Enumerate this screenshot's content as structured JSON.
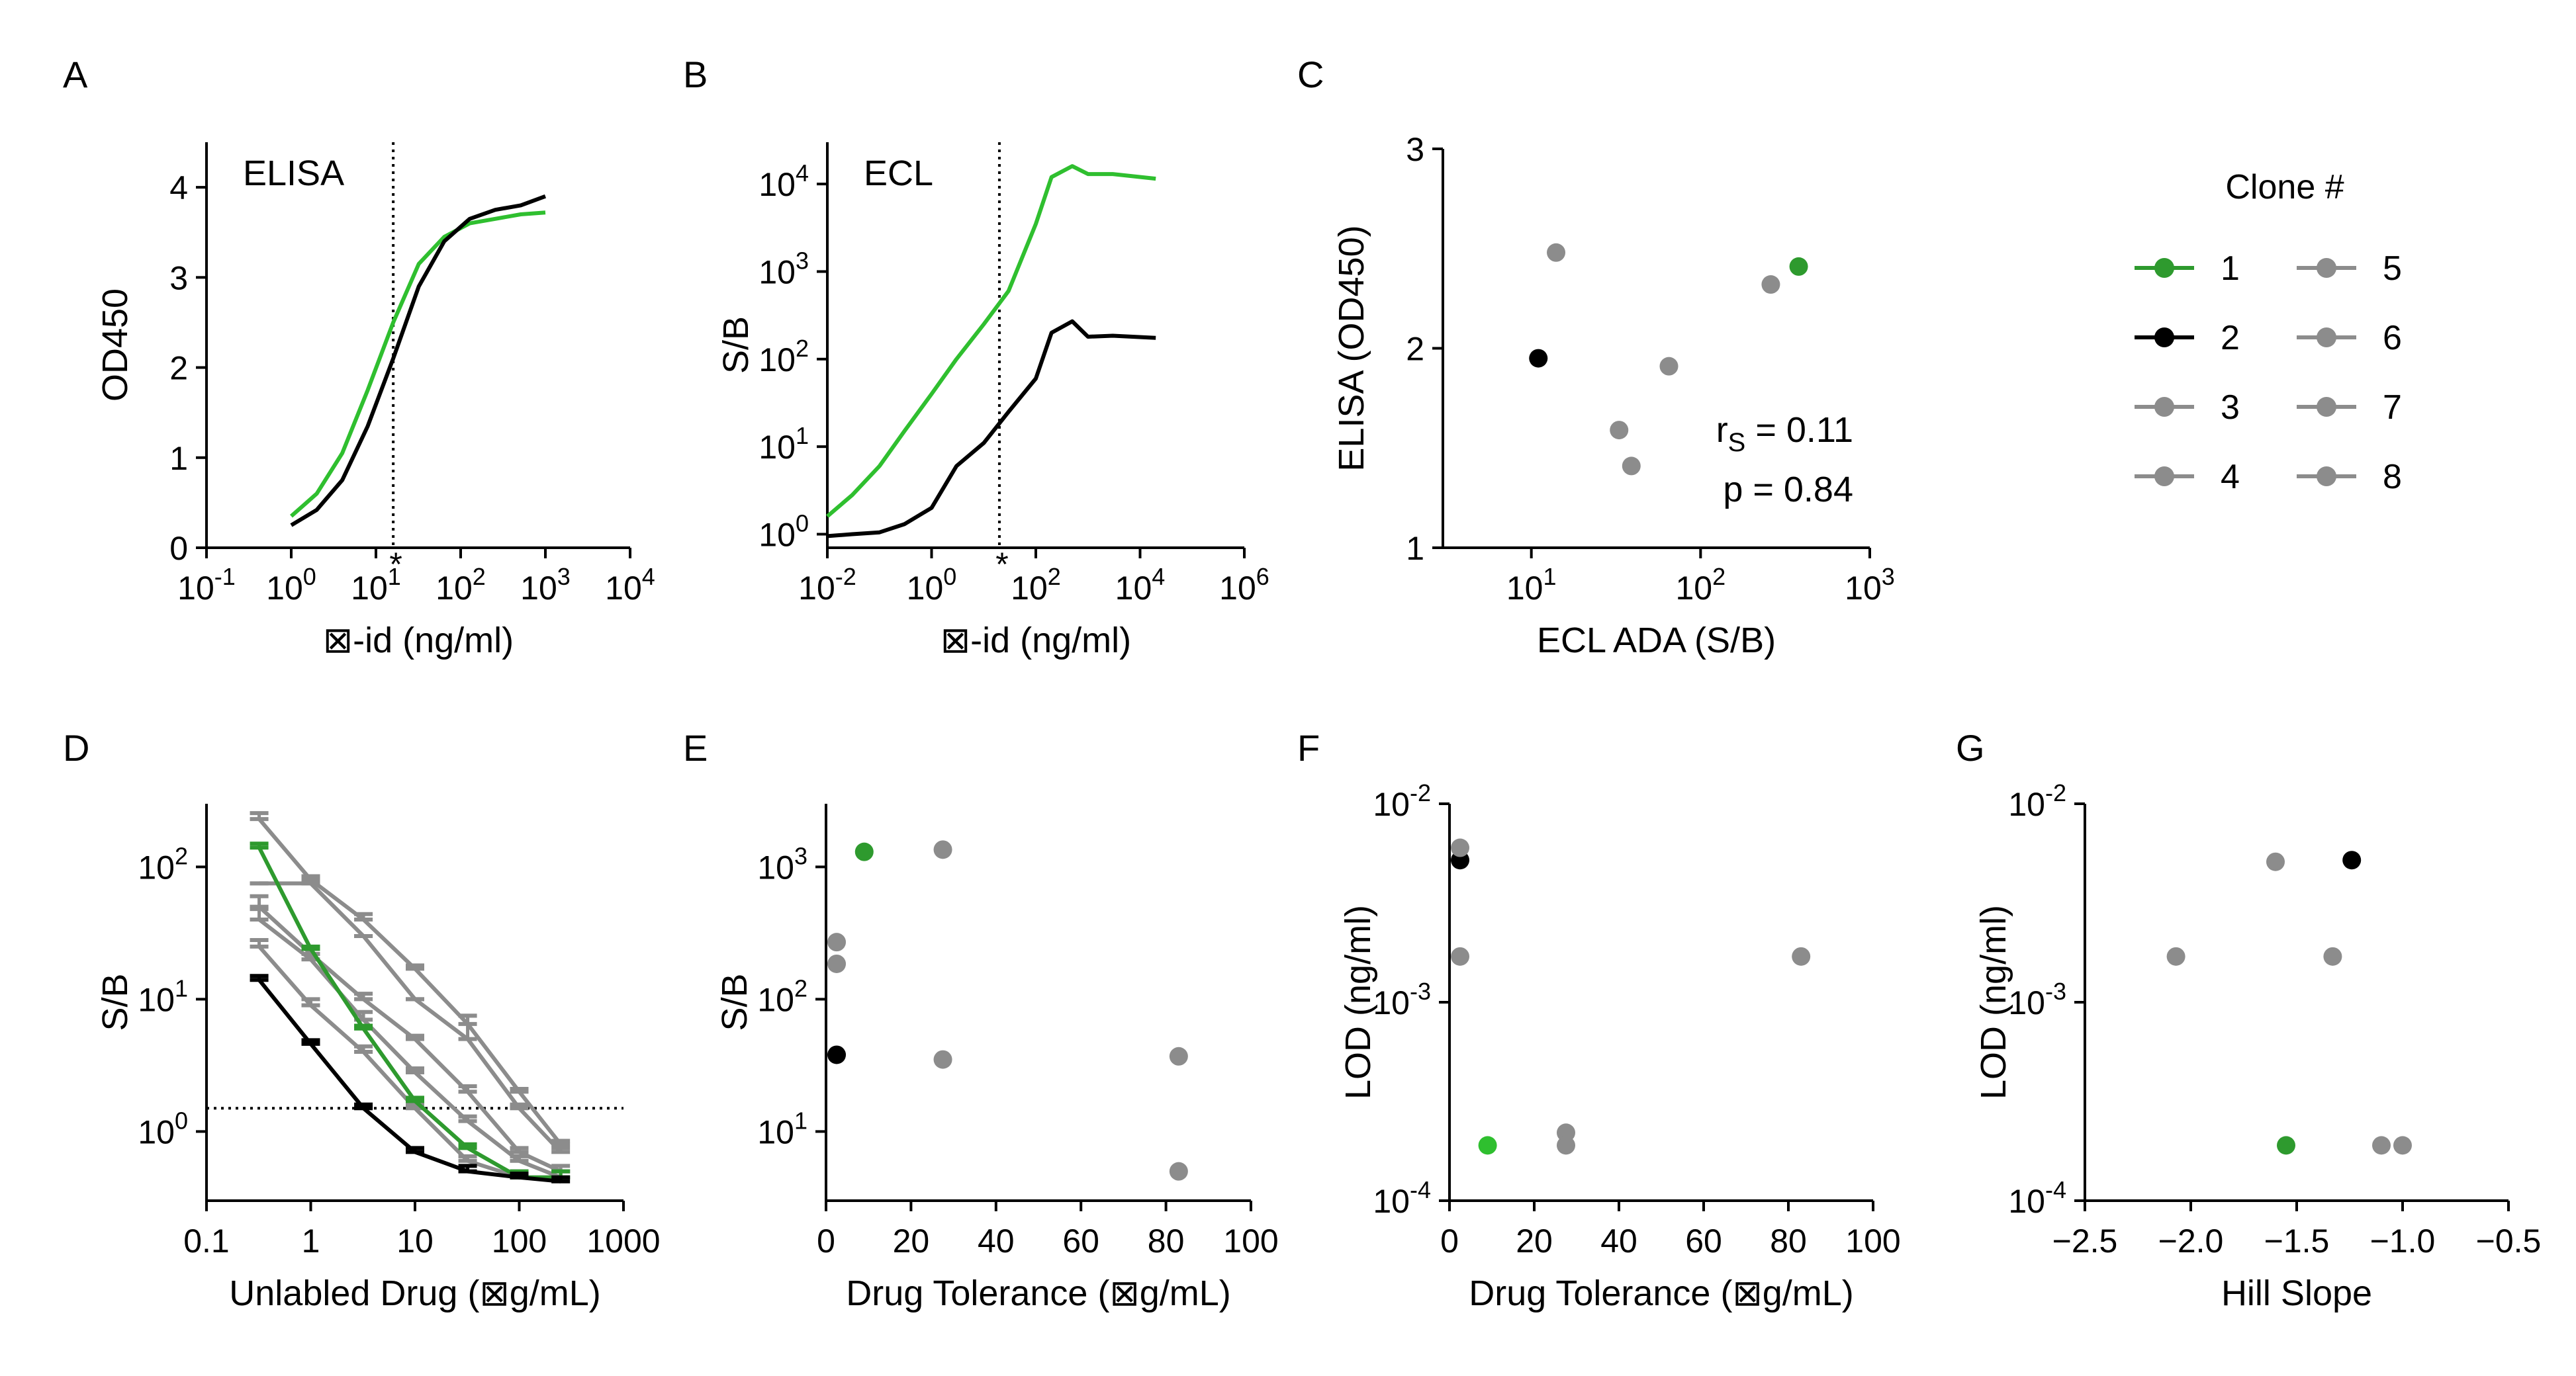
{
  "colors": {
    "clone1": "#2e9a2e",
    "clone2": "#000000",
    "other": "#8c8c8c",
    "green_curve": "#2fbf2f",
    "black_curve": "#000000"
  },
  "legend": {
    "title": "Clone #",
    "items": [
      {
        "label": "1",
        "color": "#2e9a2e"
      },
      {
        "label": "2",
        "color": "#000000"
      },
      {
        "label": "3",
        "color": "#8c8c8c"
      },
      {
        "label": "4",
        "color": "#8c8c8c"
      },
      {
        "label": "5",
        "color": "#8c8c8c"
      },
      {
        "label": "6",
        "color": "#8c8c8c"
      },
      {
        "label": "7",
        "color": "#8c8c8c"
      },
      {
        "label": "8",
        "color": "#8c8c8c"
      }
    ]
  },
  "chart_data": [
    {
      "id": "A",
      "type": "line",
      "letter": "A",
      "inner_label": "ELISA",
      "xlabel": "⊠-id (ng/ml)",
      "ylabel": "OD450",
      "xscale": "log",
      "xlim": [
        0.1,
        10000
      ],
      "ylim": [
        0,
        4.5
      ],
      "xticks": [
        {
          "v": 0.1,
          "base": "10",
          "exp": "-1"
        },
        {
          "v": 1,
          "base": "10",
          "exp": "0"
        },
        {
          "v": 10,
          "base": "10",
          "exp": "1"
        },
        {
          "v": 100,
          "base": "10",
          "exp": "2"
        },
        {
          "v": 1000,
          "base": "10",
          "exp": "3"
        },
        {
          "v": 10000,
          "base": "10",
          "exp": "4"
        }
      ],
      "yticks": [
        {
          "v": 0,
          "label": "0"
        },
        {
          "v": 1,
          "label": "1"
        },
        {
          "v": 2,
          "label": "2"
        },
        {
          "v": 3,
          "label": "3"
        },
        {
          "v": 4,
          "label": "4"
        }
      ],
      "vline": {
        "x": 16,
        "marker": "*"
      },
      "series": [
        {
          "name": "green",
          "color": "#2fbf2f",
          "x": [
            1,
            2,
            4,
            8,
            16,
            32,
            64,
            128,
            256,
            512,
            1000
          ],
          "y": [
            0.35,
            0.6,
            1.05,
            1.75,
            2.5,
            3.15,
            3.45,
            3.6,
            3.65,
            3.7,
            3.72
          ]
        },
        {
          "name": "black",
          "color": "#000000",
          "x": [
            1,
            2,
            4,
            8,
            16,
            32,
            64,
            128,
            256,
            512,
            1000
          ],
          "y": [
            0.25,
            0.42,
            0.75,
            1.35,
            2.1,
            2.9,
            3.4,
            3.65,
            3.75,
            3.8,
            3.9
          ]
        }
      ]
    },
    {
      "id": "B",
      "type": "line",
      "letter": "B",
      "inner_label": "ECL",
      "xlabel": "⊠-id (ng/ml)",
      "ylabel": "S/B",
      "xscale": "log",
      "yscale": "log",
      "xlim": [
        0.01,
        1000000
      ],
      "ylim": [
        0.7,
        30000
      ],
      "xticks": [
        {
          "v": 0.01,
          "base": "10",
          "exp": "-2"
        },
        {
          "v": 1,
          "base": "10",
          "exp": "0"
        },
        {
          "v": 100,
          "base": "10",
          "exp": "2"
        },
        {
          "v": 10000,
          "base": "10",
          "exp": "4"
        },
        {
          "v": 1000000,
          "base": "10",
          "exp": "6"
        }
      ],
      "yticks": [
        {
          "v": 1,
          "base": "10",
          "exp": "0"
        },
        {
          "v": 10,
          "base": "10",
          "exp": "1"
        },
        {
          "v": 100,
          "base": "10",
          "exp": "2"
        },
        {
          "v": 1000,
          "base": "10",
          "exp": "3"
        },
        {
          "v": 10000,
          "base": "10",
          "exp": "4"
        }
      ],
      "vline": {
        "x": 20,
        "marker": "*"
      },
      "series": [
        {
          "name": "green",
          "color": "#2fbf2f",
          "x": [
            0.01,
            0.03,
            0.1,
            0.3,
            1,
            3,
            10,
            30,
            100,
            200,
            500,
            1000,
            3000,
            20000
          ],
          "y": [
            1.6,
            2.8,
            6,
            15,
            40,
            100,
            250,
            600,
            3500,
            12000,
            16000,
            13000,
            13000,
            11500
          ]
        },
        {
          "name": "black",
          "color": "#000000",
          "x": [
            0.01,
            0.03,
            0.1,
            0.3,
            1,
            3,
            10,
            30,
            100,
            200,
            500,
            1000,
            3000,
            20000
          ],
          "y": [
            0.95,
            1.0,
            1.05,
            1.3,
            2,
            6,
            11,
            25,
            60,
            200,
            270,
            180,
            185,
            175
          ]
        }
      ]
    },
    {
      "id": "C",
      "type": "scatter",
      "letter": "C",
      "xlabel": "ECL ADA (S/B)",
      "ylabel": "ELISA (OD450)",
      "xscale": "log",
      "xlim": [
        3,
        1000
      ],
      "ylim": [
        1,
        3
      ],
      "xticks": [
        {
          "v": 10,
          "base": "10",
          "exp": "1"
        },
        {
          "v": 100,
          "base": "10",
          "exp": "2"
        },
        {
          "v": 1000,
          "base": "10",
          "exp": "3"
        }
      ],
      "yticks": [
        {
          "v": 1,
          "label": "1"
        },
        {
          "v": 2,
          "label": "2"
        },
        {
          "v": 3,
          "label": "3"
        }
      ],
      "stat1_prefix": "r",
      "stat1_sub": "S",
      "stat1_value": " = 0.11",
      "stat2": "p = 0.84",
      "points": [
        {
          "clone": "1",
          "x": 380,
          "y": 2.41,
          "color": "#2e9a2e"
        },
        {
          "clone": "2",
          "x": 11,
          "y": 1.95,
          "color": "#000000"
        },
        {
          "clone": "3",
          "x": 14,
          "y": 2.48,
          "color": "#8c8c8c"
        },
        {
          "clone": "4",
          "x": 260,
          "y": 2.32,
          "color": "#8c8c8c"
        },
        {
          "clone": "5",
          "x": 65,
          "y": 1.91,
          "color": "#8c8c8c"
        },
        {
          "clone": "6",
          "x": 33,
          "y": 1.59,
          "color": "#8c8c8c"
        },
        {
          "clone": "7",
          "x": 39,
          "y": 1.41,
          "color": "#8c8c8c"
        }
      ]
    },
    {
      "id": "D",
      "type": "line",
      "letter": "D",
      "xlabel": "Unlabled Drug (⊠g/mL)",
      "ylabel": "S/B",
      "xscale": "log",
      "yscale": "log",
      "xlim": [
        0.1,
        1000
      ],
      "ylim": [
        0.3,
        300
      ],
      "xticks": [
        {
          "v": 0.1,
          "label": "0.1"
        },
        {
          "v": 1,
          "label": "1"
        },
        {
          "v": 10,
          "label": "10"
        },
        {
          "v": 100,
          "label": "100"
        },
        {
          "v": 1000,
          "label": "1000"
        }
      ],
      "yticks": [
        {
          "v": 1,
          "base": "10",
          "exp": "0"
        },
        {
          "v": 10,
          "base": "10",
          "exp": "1"
        },
        {
          "v": 100,
          "base": "10",
          "exp": "2"
        }
      ],
      "hline": 1.5,
      "x": [
        0.32,
        1,
        3.2,
        10,
        32,
        100,
        250
      ],
      "series": [
        {
          "name": "g1",
          "color": "#8c8c8c",
          "y": [
            230,
            80,
            40,
            17,
            6.5,
            2.0,
            0.8
          ],
          "err": [
            25,
            5,
            4,
            1,
            1,
            0.1,
            0.05
          ]
        },
        {
          "name": "g2",
          "color": "#8c8c8c",
          "y": [
            75,
            75,
            30,
            10,
            5,
            1.5,
            0.7
          ],
          "err": [
            0,
            0,
            0,
            0,
            2.5,
            0.1,
            0.05
          ]
        },
        {
          "name": "g3",
          "color": "#8c8c8c",
          "y": [
            50,
            22,
            10,
            5,
            2,
            0.7,
            0.5
          ],
          "err": [
            10,
            2,
            1,
            0.3,
            0.2,
            0.05,
            0.05
          ]
        },
        {
          "name": "g4",
          "color": "#8c8c8c",
          "y": [
            40,
            20,
            7,
            2.8,
            1.2,
            0.6,
            0.45
          ],
          "err": [
            8,
            2,
            1,
            0.2,
            0.1,
            0.05,
            0.05
          ]
        },
        {
          "name": "g5",
          "color": "#8c8c8c",
          "y": [
            25,
            9,
            4,
            1.5,
            0.6,
            0.45,
            0.45
          ],
          "err": [
            3,
            1,
            0.4,
            0.1,
            0.05,
            0.05,
            0.05
          ]
        },
        {
          "name": "clone1",
          "color": "#2e9a2e",
          "y": [
            140,
            24,
            6,
            1.7,
            0.75,
            0.45,
            0.45
          ],
          "err": [
            10,
            1,
            0.3,
            0.1,
            0.05,
            0.05,
            0.05
          ]
        },
        {
          "name": "clone2",
          "color": "#000000",
          "y": [
            14,
            4.6,
            1.5,
            0.7,
            0.5,
            0.45,
            0.42
          ],
          "err": [
            1,
            0.3,
            0.1,
            0.05,
            0.05,
            0.03,
            0.03
          ]
        }
      ]
    },
    {
      "id": "E",
      "type": "scatter",
      "letter": "E",
      "xlabel": "Drug Tolerance (⊠g/mL)",
      "ylabel": "S/B",
      "yscale": "log",
      "xlim": [
        0,
        100
      ],
      "ylim": [
        3,
        3000
      ],
      "xticks": [
        {
          "v": 0,
          "label": "0"
        },
        {
          "v": 20,
          "label": "20"
        },
        {
          "v": 40,
          "label": "40"
        },
        {
          "v": 60,
          "label": "60"
        },
        {
          "v": 80,
          "label": "80"
        },
        {
          "v": 100,
          "label": "100"
        }
      ],
      "yticks": [
        {
          "v": 10,
          "base": "10",
          "exp": "1"
        },
        {
          "v": 100,
          "base": "10",
          "exp": "2"
        },
        {
          "v": 1000,
          "base": "10",
          "exp": "3"
        }
      ],
      "points": [
        {
          "clone": "1",
          "x": 9,
          "y": 1300,
          "color": "#2e9a2e"
        },
        {
          "clone": "2",
          "x": 2.5,
          "y": 38,
          "color": "#000000"
        },
        {
          "clone": "3",
          "x": 27.5,
          "y": 1350,
          "color": "#8c8c8c"
        },
        {
          "clone": "4",
          "x": 2.5,
          "y": 270,
          "color": "#8c8c8c"
        },
        {
          "clone": "5",
          "x": 2.5,
          "y": 185,
          "color": "#8c8c8c"
        },
        {
          "clone": "6",
          "x": 27.5,
          "y": 35,
          "color": "#8c8c8c"
        },
        {
          "clone": "7",
          "x": 83,
          "y": 37,
          "color": "#8c8c8c"
        },
        {
          "clone": "8",
          "x": 83,
          "y": 5,
          "color": "#8c8c8c"
        }
      ]
    },
    {
      "id": "F",
      "type": "scatter",
      "letter": "F",
      "xlabel": "Drug Tolerance (⊠g/mL)",
      "ylabel": "LOD (ng/ml)",
      "yscale": "log",
      "xlim": [
        0,
        100
      ],
      "ylim": [
        0.0001,
        0.01
      ],
      "xticks": [
        {
          "v": 0,
          "label": "0"
        },
        {
          "v": 20,
          "label": "20"
        },
        {
          "v": 40,
          "label": "40"
        },
        {
          "v": 60,
          "label": "60"
        },
        {
          "v": 80,
          "label": "80"
        },
        {
          "v": 100,
          "label": "100"
        }
      ],
      "yticks": [
        {
          "v": 0.0001,
          "base": "10",
          "exp": "-4"
        },
        {
          "v": 0.001,
          "base": "10",
          "exp": "-3"
        },
        {
          "v": 0.01,
          "base": "10",
          "exp": "-2"
        }
      ],
      "points": [
        {
          "clone": "1",
          "x": 9,
          "y": 0.00019,
          "color": "#2fbf2f"
        },
        {
          "clone": "2",
          "x": 2.5,
          "y": 0.0052,
          "color": "#000000"
        },
        {
          "clone": "3",
          "x": 2.5,
          "y": 0.006,
          "color": "#8c8c8c"
        },
        {
          "clone": "4",
          "x": 2.5,
          "y": 0.0017,
          "color": "#8c8c8c"
        },
        {
          "clone": "5",
          "x": 27.5,
          "y": 0.00022,
          "color": "#8c8c8c"
        },
        {
          "clone": "6",
          "x": 27.5,
          "y": 0.00019,
          "color": "#8c8c8c"
        },
        {
          "clone": "7",
          "x": 83,
          "y": 0.0017,
          "color": "#8c8c8c"
        }
      ]
    },
    {
      "id": "G",
      "type": "scatter",
      "letter": "G",
      "xlabel": "Hill Slope",
      "ylabel": "LOD (ng/ml)",
      "yscale": "log",
      "xlim": [
        -2.5,
        -0.5
      ],
      "ylim": [
        0.0001,
        0.01
      ],
      "xticks": [
        {
          "v": -2.5,
          "label": "−2.5"
        },
        {
          "v": -2.0,
          "label": "−2.0"
        },
        {
          "v": -1.5,
          "label": "−1.5"
        },
        {
          "v": -1.0,
          "label": "−1.0"
        },
        {
          "v": -0.5,
          "label": "−0.5"
        }
      ],
      "yticks": [
        {
          "v": 0.0001,
          "base": "10",
          "exp": "-4"
        },
        {
          "v": 0.001,
          "base": "10",
          "exp": "-3"
        },
        {
          "v": 0.01,
          "base": "10",
          "exp": "-2"
        }
      ],
      "points": [
        {
          "clone": "1",
          "x": -1.55,
          "y": 0.00019,
          "color": "#2e9a2e"
        },
        {
          "clone": "2",
          "x": -1.24,
          "y": 0.0052,
          "color": "#000000"
        },
        {
          "clone": "3",
          "x": -1.6,
          "y": 0.0051,
          "color": "#8c8c8c"
        },
        {
          "clone": "4",
          "x": -2.07,
          "y": 0.0017,
          "color": "#8c8c8c"
        },
        {
          "clone": "5",
          "x": -1.33,
          "y": 0.0017,
          "color": "#8c8c8c"
        },
        {
          "clone": "6",
          "x": -1.1,
          "y": 0.00019,
          "color": "#8c8c8c"
        },
        {
          "clone": "7",
          "x": -1.0,
          "y": 0.00019,
          "color": "#8c8c8c"
        }
      ]
    }
  ]
}
